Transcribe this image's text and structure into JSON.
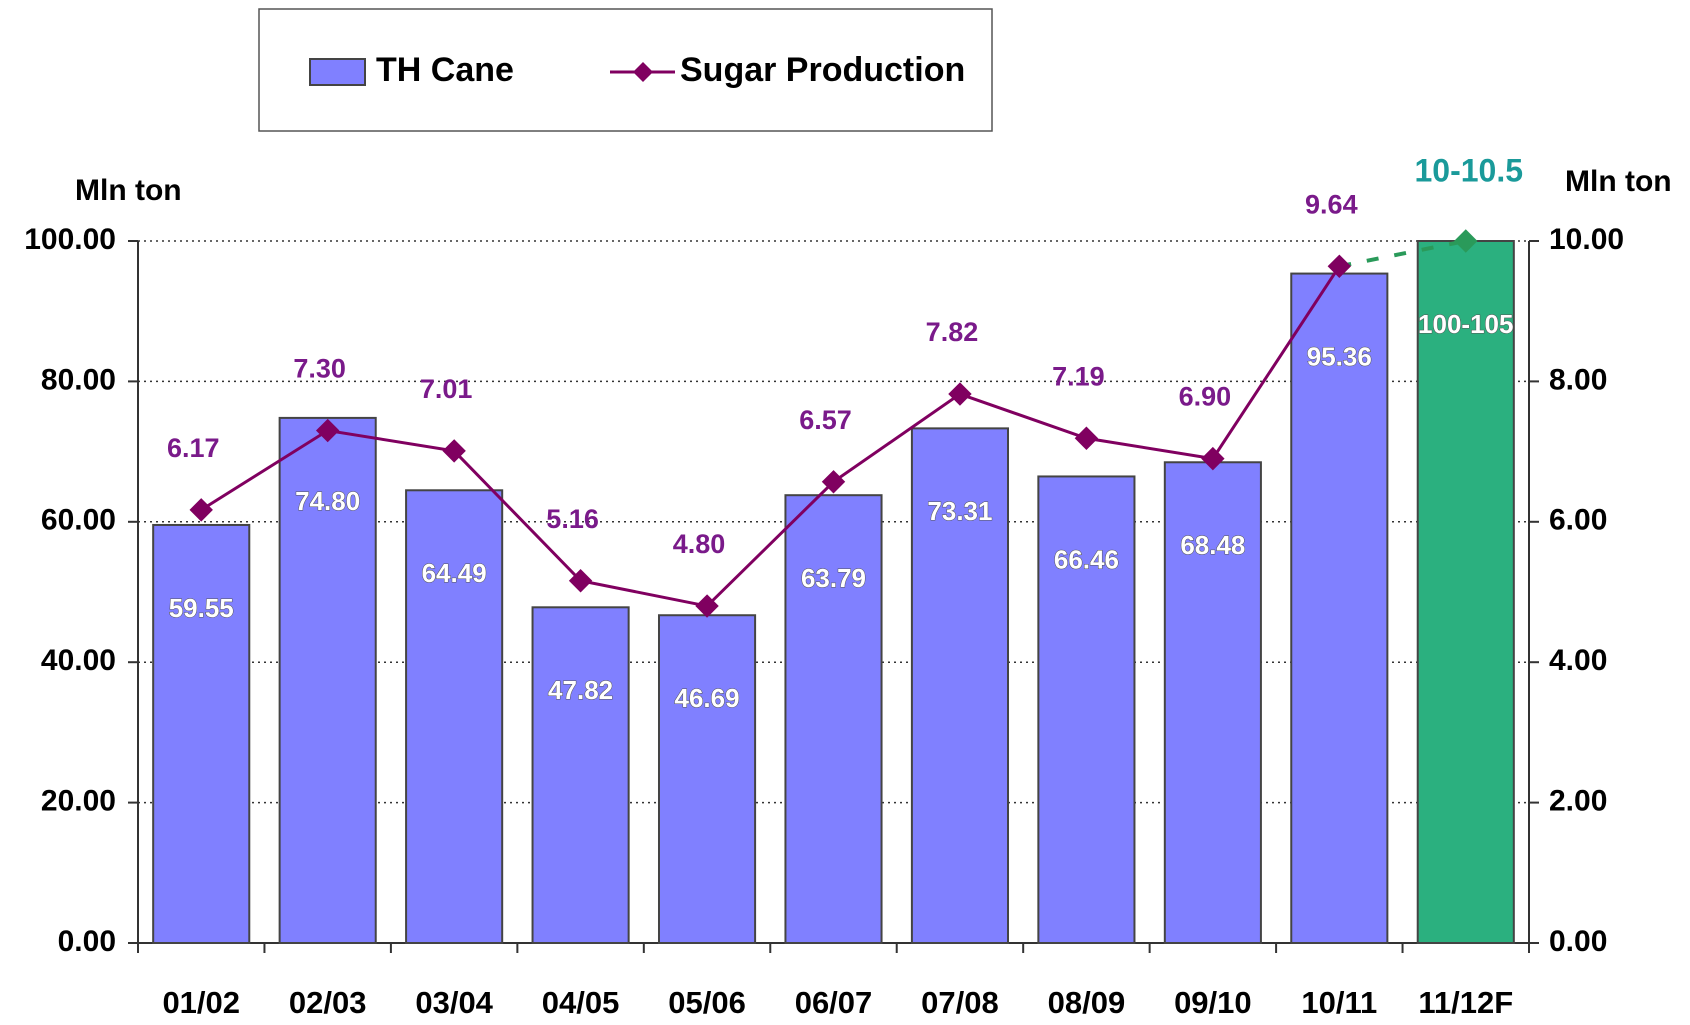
{
  "chart_data": {
    "type": "bar_line",
    "categories": [
      "01/02",
      "02/03",
      "03/04",
      "04/05",
      "05/06",
      "06/07",
      "07/08",
      "08/09",
      "09/10",
      "10/11",
      "11/12F"
    ],
    "series": [
      {
        "name": "TH Cane",
        "type": "bar",
        "axis": "y",
        "colors": [
          "#8080ff",
          "#8080ff",
          "#8080ff",
          "#8080ff",
          "#8080ff",
          "#8080ff",
          "#8080ff",
          "#8080ff",
          "#8080ff",
          "#8080ff",
          "#2bb07f"
        ],
        "values": [
          59.55,
          74.8,
          64.49,
          47.82,
          46.69,
          63.79,
          73.31,
          66.46,
          68.48,
          95.36,
          100
        ],
        "value_labels": [
          "59.55",
          "74.80",
          "64.49",
          "47.82",
          "46.69",
          "63.79",
          "73.31",
          "66.46",
          "68.48",
          "95.36",
          "100-105"
        ]
      },
      {
        "name": "Sugar Production",
        "type": "line",
        "axis": "y2",
        "color": "#800060",
        "colors": [
          "#800060",
          "#800060",
          "#800060",
          "#800060",
          "#800060",
          "#800060",
          "#800060",
          "#800060",
          "#800060",
          "#800060",
          "#2a9a5a"
        ],
        "label_colors": [
          "#7a1a8a",
          "#7a1a8a",
          "#7a1a8a",
          "#7a1a8a",
          "#7a1a8a",
          "#7a1a8a",
          "#7a1a8a",
          "#7a1a8a",
          "#7a1a8a",
          "#7a1a8a",
          "#1a9a9a"
        ],
        "values": [
          6.17,
          7.3,
          7.01,
          5.16,
          4.8,
          6.57,
          7.82,
          7.19,
          6.9,
          9.64,
          10
        ],
        "value_labels": [
          "6.17",
          "7.30",
          "7.01",
          "5.16",
          "4.80",
          "6.57",
          "7.82",
          "7.19",
          "6.90",
          "9.64",
          "10-10.5"
        ]
      }
    ],
    "y_label": "Mln ton",
    "y2_label": "Mln ton",
    "ylim": [
      0,
      100
    ],
    "yticks": [
      {
        "value": 0,
        "label": "0.00"
      },
      {
        "value": 20,
        "label": "20.00"
      },
      {
        "value": 40,
        "label": "40.00"
      },
      {
        "value": 60,
        "label": "60.00"
      },
      {
        "value": 80,
        "label": "80.00"
      },
      {
        "value": 100,
        "label": "100.00"
      }
    ],
    "y2lim": [
      0,
      10
    ],
    "y2ticks": [
      {
        "value": 0,
        "label": "0.00"
      },
      {
        "value": 2,
        "label": "2.00"
      },
      {
        "value": 4,
        "label": "4.00"
      },
      {
        "value": 6,
        "label": "6.00"
      },
      {
        "value": 8,
        "label": "8.00"
      },
      {
        "value": 10,
        "label": "10.00"
      }
    ],
    "grid": true,
    "legend": "top"
  }
}
